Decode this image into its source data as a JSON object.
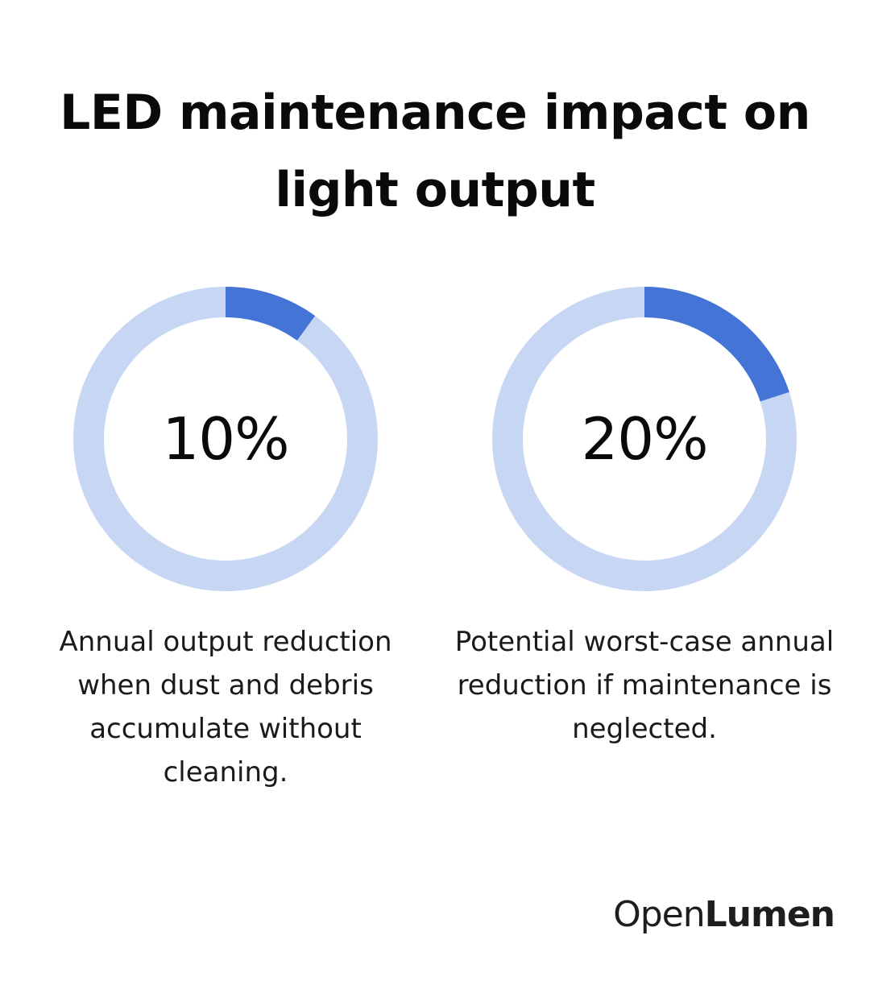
{
  "title": "LED maintenance impact on light output",
  "colors": {
    "ring_background": "#c7d6f2",
    "ring_fill": "#4474d6",
    "text": "#0a0a0a"
  },
  "chart_data": [
    {
      "type": "pie",
      "value_percent": 10,
      "label": "10%",
      "caption": "Annual output reduction when dust and debris accumulate without cleaning."
    },
    {
      "type": "pie",
      "value_percent": 20,
      "label": "20%",
      "caption": "Potential worst-case annual reduction if maintenance is neglected."
    }
  ],
  "brand": {
    "light": "Open",
    "bold": "Lumen"
  }
}
